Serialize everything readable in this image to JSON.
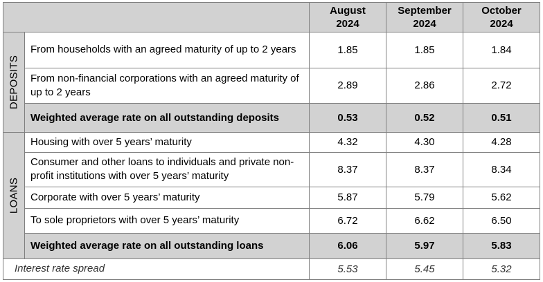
{
  "header": {
    "columns": [
      "August\n2024",
      "September\n2024",
      "October\n2024"
    ],
    "col1_line1": "August",
    "col1_line2": "2024",
    "col2_line1": "September",
    "col2_line2": "2024",
    "col3_line1": "October",
    "col3_line2": "2024"
  },
  "deposits": {
    "group_label": "DEPOSITS",
    "rows": [
      {
        "label": "From households with an agreed maturity of up to 2 years",
        "values": [
          "1.85",
          "1.85",
          "1.84"
        ]
      },
      {
        "label": "From non-financial corporations with an agreed maturity of up to 2 years",
        "values": [
          "2.89",
          "2.86",
          "2.72"
        ]
      },
      {
        "label": "Weighted average rate on all outstanding deposits",
        "values": [
          "0.53",
          "0.52",
          "0.51"
        ]
      }
    ]
  },
  "loans": {
    "group_label": "LOANS",
    "rows": [
      {
        "label": "Housing with over 5 years’ maturity",
        "values": [
          "4.32",
          "4.30",
          "4.28"
        ]
      },
      {
        "label": "Consumer and other loans to individuals and private non-profit institutions with over 5 years’ maturity",
        "values": [
          "8.37",
          "8.37",
          "8.34"
        ]
      },
      {
        "label": "Corporate with over 5 years’ maturity",
        "values": [
          "5.87",
          "5.79",
          "5.62"
        ]
      },
      {
        "label": "To sole proprietors with over 5 years’ maturity",
        "values": [
          "6.72",
          "6.62",
          "6.50"
        ]
      },
      {
        "label": "Weighted average rate on all outstanding loans",
        "values": [
          "6.06",
          "5.97",
          "5.83"
        ]
      }
    ]
  },
  "spread": {
    "label": "Interest rate spread",
    "values": [
      "5.53",
      "5.45",
      "5.32"
    ]
  }
}
